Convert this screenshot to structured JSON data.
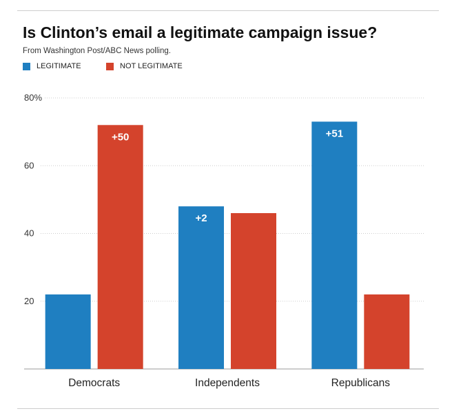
{
  "chart_data": {
    "type": "bar",
    "title": "Is Clinton’s email a legitimate campaign issue?",
    "subtitle": "From Washington Post/ABC News polling.",
    "categories": [
      "Democrats",
      "Independents",
      "Republicans"
    ],
    "series": [
      {
        "name": "LEGITIMATE",
        "color": "#1f7fc1",
        "values": [
          22,
          48,
          73
        ]
      },
      {
        "name": "NOT LEGITIMATE",
        "color": "#d4432c",
        "values": [
          72,
          46,
          22
        ]
      }
    ],
    "annotations": [
      {
        "category": "Democrats",
        "series": "NOT LEGITIMATE",
        "text": "+50"
      },
      {
        "category": "Independents",
        "series": "LEGITIMATE",
        "text": "+2"
      },
      {
        "category": "Republicans",
        "series": "LEGITIMATE",
        "text": "+51"
      }
    ],
    "yticks": [
      20,
      40,
      60,
      80
    ],
    "ytick_labels": [
      "20",
      "40",
      "60",
      "80%"
    ],
    "ylim": [
      0,
      80
    ],
    "grid": true,
    "legend_position": "top-left",
    "xlabel": "",
    "ylabel": ""
  }
}
